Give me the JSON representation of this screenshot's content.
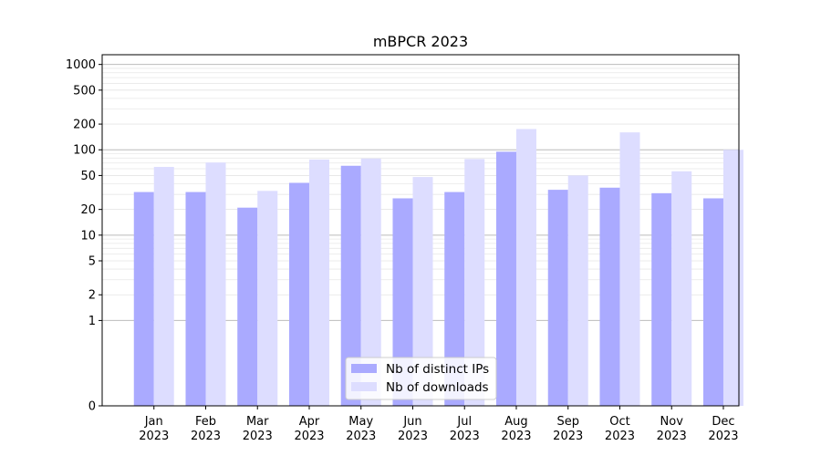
{
  "chart_data": {
    "type": "bar",
    "title": "mBPCR 2023",
    "xlabel": "",
    "ylabel": "",
    "yscale": "symlog",
    "ylim": [
      0,
      1300
    ],
    "yticks": [
      0,
      1,
      2,
      5,
      10,
      20,
      50,
      100,
      200,
      500,
      1000
    ],
    "grid": true,
    "legend_position": "bottom-center",
    "categories": [
      "Jan\n2023",
      "Feb\n2023",
      "Mar\n2023",
      "Apr\n2023",
      "May\n2023",
      "Jun\n2023",
      "Jul\n2023",
      "Aug\n2023",
      "Sep\n2023",
      "Oct\n2023",
      "Nov\n2023",
      "Dec\n2023"
    ],
    "series": [
      {
        "name": "Nb of distinct IPs",
        "color": "#aaaaff",
        "values": [
          32,
          32,
          21,
          41,
          65,
          27,
          32,
          95,
          34,
          36,
          31,
          27
        ]
      },
      {
        "name": "Nb of downloads",
        "color": "#ddddff",
        "values": [
          63,
          71,
          33,
          77,
          79,
          48,
          78,
          175,
          50,
          160,
          56,
          100
        ]
      }
    ]
  }
}
